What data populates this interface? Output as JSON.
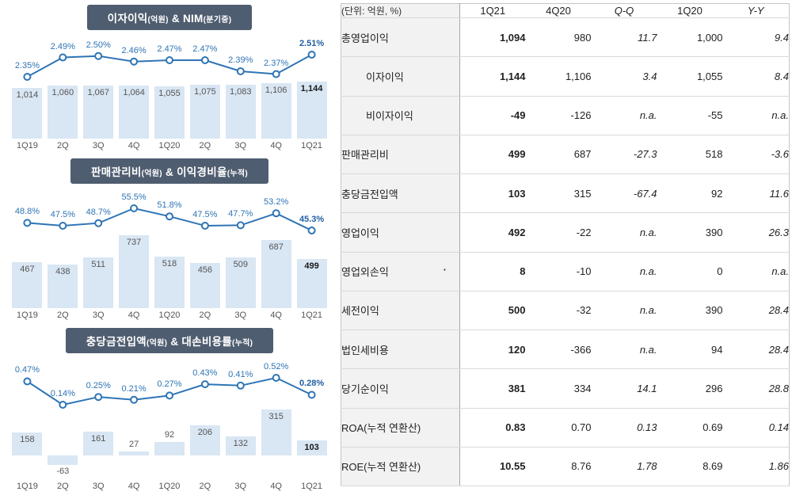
{
  "colors": {
    "title_bg": "#4f5d70",
    "bar_fill": "#d9e6f3",
    "line": "#2e74b5",
    "pct_text": "#2e74b5",
    "bar_text": "#555555"
  },
  "chart_data": [
    {
      "type": "bar-line",
      "title_main1": "이자이익",
      "title_sub1": "(억원)",
      "title_main2": " & NIM",
      "title_sub2": "(분기중)",
      "categories": [
        "1Q19",
        "2Q",
        "3Q",
        "4Q",
        "1Q20",
        "2Q",
        "3Q",
        "4Q",
        "1Q21"
      ],
      "bars": {
        "name": "이자이익(억원)",
        "values": [
          1014,
          1060,
          1067,
          1064,
          1055,
          1075,
          1083,
          1106,
          1144
        ],
        "labels": [
          "1,014",
          "1,060",
          "1,067",
          "1,064",
          "1,055",
          "1,075",
          "1,083",
          "1,106",
          "1,144"
        ]
      },
      "line": {
        "name": "NIM(분기중)",
        "values": [
          2.35,
          2.49,
          2.5,
          2.46,
          2.47,
          2.47,
          2.39,
          2.37,
          2.51
        ],
        "labels": [
          "2.35%",
          "2.49%",
          "2.50%",
          "2.46%",
          "2.47%",
          "2.47%",
          "2.39%",
          "2.37%",
          "2.51%"
        ]
      },
      "layout": {
        "line_h": 60,
        "bar_zone": 72,
        "neg_zone": 0
      }
    },
    {
      "type": "bar-line",
      "title_main1": "판매관리비",
      "title_sub1": "(억원)",
      "title_main2": " & 이익경비율",
      "title_sub2": "(누적)",
      "categories": [
        "1Q19",
        "2Q",
        "3Q",
        "4Q",
        "1Q20",
        "2Q",
        "3Q",
        "4Q",
        "1Q21"
      ],
      "bars": {
        "name": "판매관리비(억원)",
        "values": [
          467,
          438,
          511,
          737,
          518,
          456,
          509,
          687,
          499
        ],
        "labels": [
          "467",
          "438",
          "511",
          "737",
          "518",
          "456",
          "509",
          "687",
          "499"
        ]
      },
      "line": {
        "name": "이익경비율(누적)",
        "values": [
          48.8,
          47.5,
          48.7,
          55.5,
          51.8,
          47.5,
          47.7,
          53.2,
          45.3
        ],
        "labels": [
          "48.8%",
          "47.5%",
          "48.7%",
          "55.5%",
          "51.8%",
          "47.5%",
          "47.7%",
          "53.2%",
          "45.3%"
        ]
      },
      "layout": {
        "line_h": 60,
        "bar_zone": 92,
        "neg_zone": 0
      }
    },
    {
      "type": "bar-line",
      "title_main1": "충당금전입액",
      "title_sub1": "(억원)",
      "title_main2": " & 대손비용률",
      "title_sub2": "(누적)",
      "categories": [
        "1Q19",
        "2Q",
        "3Q",
        "4Q",
        "1Q20",
        "2Q",
        "3Q",
        "4Q",
        "1Q21"
      ],
      "bars": {
        "name": "충당금전입액(억원)",
        "values": [
          158,
          -63,
          161,
          27,
          92,
          206,
          132,
          315,
          103
        ],
        "labels": [
          "158",
          "-63",
          "161",
          "27",
          "92",
          "206",
          "132",
          "315",
          "103"
        ]
      },
      "line": {
        "name": "대손비용률(누적)",
        "values": [
          0.47,
          0.14,
          0.25,
          0.21,
          0.27,
          0.43,
          0.41,
          0.52,
          0.28
        ],
        "labels": [
          "0.47%",
          "0.14%",
          "0.25%",
          "0.21%",
          "0.27%",
          "0.43%",
          "0.41%",
          "0.52%",
          "0.28%"
        ]
      },
      "layout": {
        "line_h": 66,
        "bar_zone": 58,
        "neg_zone": 30
      }
    },
    {
      "type": "table",
      "headers": [
        "(단위: 억원, %)",
        "1Q21",
        "4Q20",
        "Q-Q",
        "1Q20",
        "Y-Y"
      ],
      "rows": [
        {
          "label": "총영업이익",
          "indent": false,
          "dot": false,
          "values": [
            "1,094",
            "980",
            "11.7",
            "1,000",
            "9.4"
          ]
        },
        {
          "label": "이자이익",
          "indent": true,
          "dot": false,
          "values": [
            "1,144",
            "1,106",
            "3.4",
            "1,055",
            "8.4"
          ]
        },
        {
          "label": "비이자이익",
          "indent": true,
          "dot": false,
          "values": [
            "-49",
            "-126",
            "n.a.",
            "-55",
            "n.a."
          ]
        },
        {
          "label": "판매관리비",
          "indent": false,
          "dot": false,
          "values": [
            "499",
            "687",
            "-27.3",
            "518",
            "-3.6"
          ]
        },
        {
          "label": "충당금전입액",
          "indent": false,
          "dot": false,
          "values": [
            "103",
            "315",
            "-67.4",
            "92",
            "11.6"
          ]
        },
        {
          "label": "영업이익",
          "indent": false,
          "dot": false,
          "values": [
            "492",
            "-22",
            "n.a.",
            "390",
            "26.3"
          ]
        },
        {
          "label": "영업외손익",
          "indent": false,
          "dot": true,
          "values": [
            "8",
            "-10",
            "n.a.",
            "0",
            "n.a."
          ]
        },
        {
          "label": "세전이익",
          "indent": false,
          "dot": false,
          "values": [
            "500",
            "-32",
            "n.a.",
            "390",
            "28.4"
          ]
        },
        {
          "label": "법인세비용",
          "indent": false,
          "dot": false,
          "values": [
            "120",
            "-366",
            "n.a.",
            "94",
            "28.4"
          ]
        },
        {
          "label": "당기순이익",
          "indent": false,
          "dot": false,
          "values": [
            "381",
            "334",
            "14.1",
            "296",
            "28.8"
          ]
        },
        {
          "label": "ROA(누적 연환산)",
          "indent": false,
          "dot": false,
          "values": [
            "0.83",
            "0.70",
            "0.13",
            "0.69",
            "0.14"
          ]
        },
        {
          "label": "ROE(누적 연환산)",
          "indent": false,
          "dot": false,
          "values": [
            "10.55",
            "8.76",
            "1.78",
            "8.69",
            "1.86"
          ]
        }
      ]
    }
  ]
}
